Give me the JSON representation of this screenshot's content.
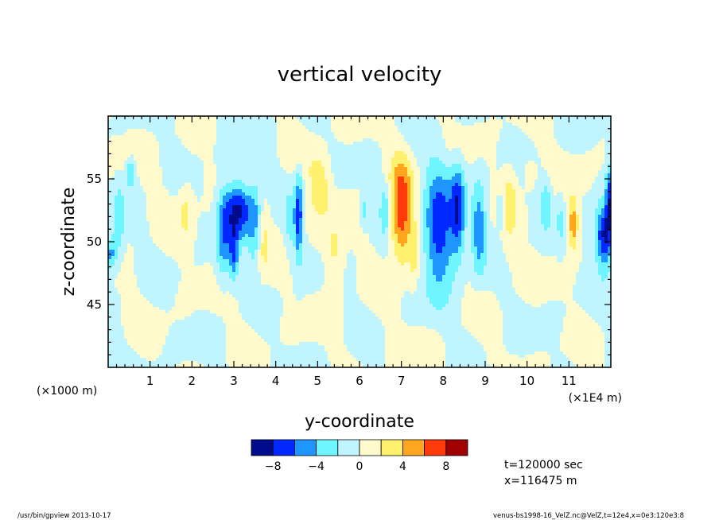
{
  "chart_data": {
    "type": "heatmap",
    "title": "vertical velocity",
    "xlabel": "y-coordinate",
    "ylabel": "z-coordinate",
    "xlim": [
      0,
      12
    ],
    "ylim": [
      40,
      60
    ],
    "x_ticks": [
      "1",
      "2",
      "3",
      "4",
      "5",
      "6",
      "7",
      "8",
      "9",
      "10",
      "11"
    ],
    "y_ticks": [
      "45",
      "50",
      "55"
    ],
    "x_unit_left": "(×1000 m)",
    "x_unit_right": "(×1E4 m)",
    "colorbar": {
      "colors": [
        "#000c8c",
        "#0028ff",
        "#1e96ff",
        "#6ef5ff",
        "#c0f4ff",
        "#fffacc",
        "#fff06e",
        "#ffa61e",
        "#ff3a0a",
        "#a00000"
      ],
      "tick_labels": [
        "−8",
        "−4",
        "0",
        "4",
        "8"
      ]
    },
    "features": [
      {
        "y": 1.85,
        "z": 52.5,
        "sy": 0.12,
        "sz": 1.8,
        "w": 2.5
      },
      {
        "y": 0.55,
        "z": 55.5,
        "sy": 0.08,
        "sz": 0.8,
        "w": -4.5
      },
      {
        "y": 0.25,
        "z": 51.5,
        "sy": 0.1,
        "sz": 2.0,
        "w": -3.5
      },
      {
        "y": 0.05,
        "z": 49.0,
        "sy": 0.1,
        "sz": 0.9,
        "w": -5.0
      },
      {
        "y": 2.75,
        "z": 50.5,
        "sy": 0.12,
        "sz": 2.5,
        "w": -5.0
      },
      {
        "y": 3.1,
        "z": 52.5,
        "sy": 0.22,
        "sz": 1.6,
        "w": -8.5
      },
      {
        "y": 3.5,
        "z": 51.5,
        "sy": 0.12,
        "sz": 2.5,
        "w": -4.0
      },
      {
        "y": 3.0,
        "z": 49.0,
        "sy": 0.08,
        "sz": 1.5,
        "w": -5.5
      },
      {
        "y": 3.7,
        "z": 50.0,
        "sy": 0.1,
        "sz": 2.0,
        "w": 2.5
      },
      {
        "y": 4.55,
        "z": 52.0,
        "sy": 0.07,
        "sz": 2.5,
        "w": -7.0
      },
      {
        "y": 4.35,
        "z": 51.5,
        "sy": 0.08,
        "sz": 1.5,
        "w": -3.0
      },
      {
        "y": 5.05,
        "z": 54.5,
        "sy": 0.18,
        "sz": 1.8,
        "w": 3.5
      },
      {
        "y": 5.4,
        "z": 49.0,
        "sy": 0.15,
        "sz": 2.0,
        "w": 2.5
      },
      {
        "y": 6.1,
        "z": 52.5,
        "sy": 0.05,
        "sz": 0.8,
        "w": -3.0
      },
      {
        "y": 6.6,
        "z": 52.5,
        "sy": 0.08,
        "sz": 1.5,
        "w": -4.0
      },
      {
        "y": 7.0,
        "z": 52.5,
        "sy": 0.18,
        "sz": 2.8,
        "w": 7.5
      },
      {
        "y": 7.3,
        "z": 49.0,
        "sy": 0.08,
        "sz": 2.0,
        "w": 2.5
      },
      {
        "y": 7.9,
        "z": 51.0,
        "sy": 0.25,
        "sz": 3.5,
        "w": -7.5
      },
      {
        "y": 8.35,
        "z": 52.5,
        "sy": 0.12,
        "sz": 2.5,
        "w": -7.0
      },
      {
        "y": 8.85,
        "z": 51.0,
        "sy": 0.12,
        "sz": 2.5,
        "w": -5.5
      },
      {
        "y": 9.35,
        "z": 52.5,
        "sy": 0.06,
        "sz": 0.9,
        "w": -3.0
      },
      {
        "y": 9.6,
        "z": 53.0,
        "sy": 0.12,
        "sz": 2.5,
        "w": 2.5
      },
      {
        "y": 10.45,
        "z": 53.0,
        "sy": 0.1,
        "sz": 1.5,
        "w": -3.5
      },
      {
        "y": 10.05,
        "z": 55.5,
        "sy": 0.1,
        "sz": 0.8,
        "w": 2.5
      },
      {
        "y": 10.8,
        "z": 51.5,
        "sy": 0.06,
        "sz": 1.5,
        "w": -2.5
      },
      {
        "y": 11.1,
        "z": 51.5,
        "sy": 0.08,
        "sz": 1.5,
        "w": 5.5
      },
      {
        "y": 11.85,
        "z": 50.5,
        "sy": 0.15,
        "sz": 1.8,
        "w": -9.0
      },
      {
        "y": 11.95,
        "z": 53.5,
        "sy": 0.05,
        "sz": 1.8,
        "w": -6.0
      }
    ]
  },
  "info": {
    "time": "t=120000 sec",
    "xpos": "x=116475 m"
  },
  "footer": {
    "left": "/usr/bin/gpview  2013-10-17",
    "right": "venus-bs1998-16_VelZ.nc@VelZ,t=12e4,x=0e3:120e3:8"
  }
}
